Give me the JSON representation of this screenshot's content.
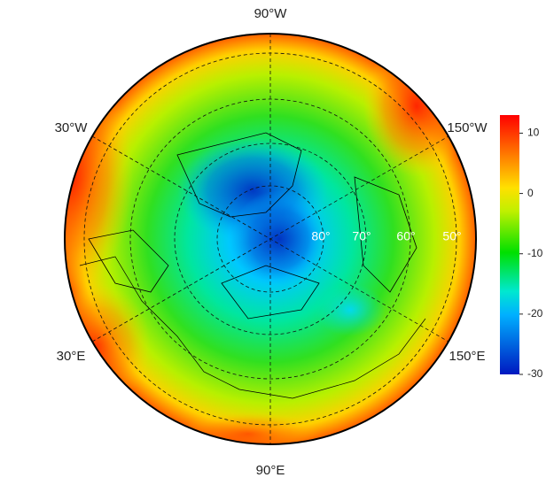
{
  "map": {
    "longitude_labels": [
      "90°W",
      "150°W",
      "150°E",
      "90°E",
      "30°E",
      "30°W"
    ],
    "latitude_labels": [
      "80°",
      "70°",
      "60°",
      "50°"
    ],
    "colorbar": {
      "lim": [
        -30,
        13
      ],
      "ticks": [
        10,
        0,
        -10,
        -20,
        -30
      ]
    }
  }
}
